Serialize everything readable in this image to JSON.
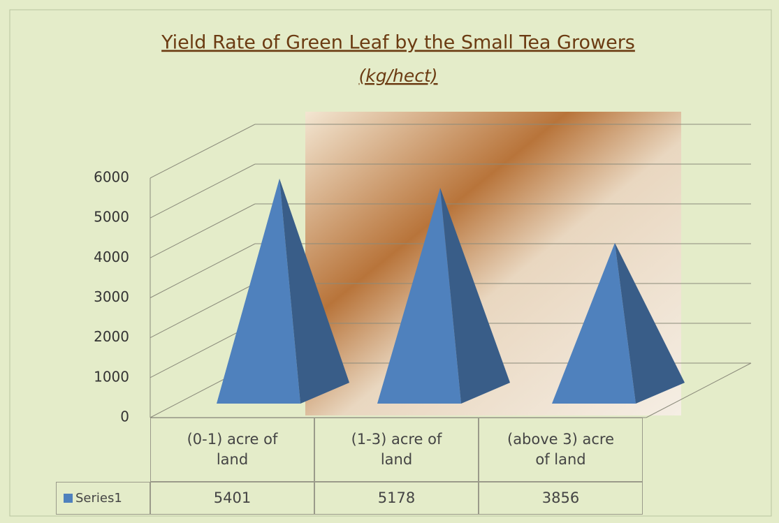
{
  "chart_data": {
    "type": "bar",
    "title": "Yield Rate of Green Leaf by the Small Tea Growers",
    "subtitle": "(kg/hect)",
    "categories": [
      "(0-1) acre of land",
      "(1-3) acre of land",
      "(above 3) acre of land"
    ],
    "series": [
      {
        "name": "Series1",
        "color": "#4f81bd",
        "values": [
          5401,
          5178,
          3856
        ]
      }
    ],
    "ylim": [
      0,
      6000
    ],
    "yticks": [
      0,
      1000,
      2000,
      3000,
      4000,
      5000,
      6000
    ],
    "grid": true
  }
}
